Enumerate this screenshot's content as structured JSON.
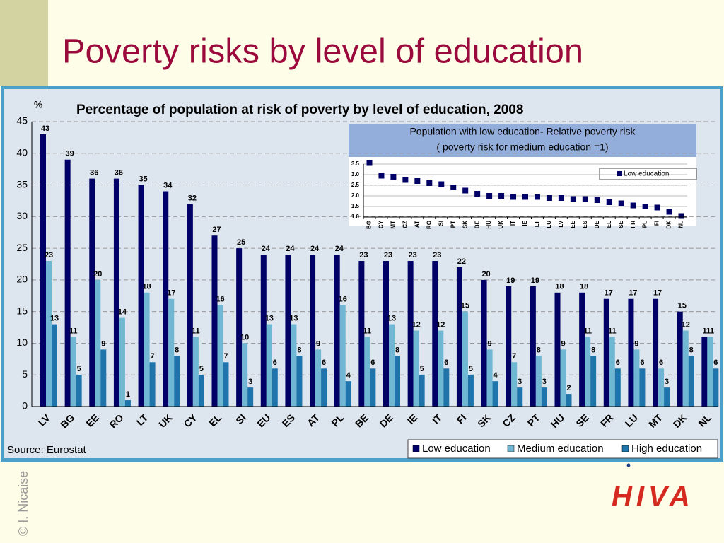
{
  "slide": {
    "title": "Poverty risks by level of education",
    "credit": "© I. Nicaise",
    "logo": "HIVA"
  },
  "chart_data": [
    {
      "type": "bar",
      "title": "Percentage of population at risk of poverty by level of education, 2008",
      "y_label": "%",
      "source": "Source: Eurostat",
      "categories": [
        "LV",
        "BG",
        "EE",
        "RO",
        "LT",
        "UK",
        "CY",
        "EL",
        "SI",
        "EU",
        "ES",
        "AT",
        "PL",
        "BE",
        "DE",
        "IE",
        "IT",
        "FI",
        "SK",
        "CZ",
        "PT",
        "HU",
        "SE",
        "FR",
        "LU",
        "MT",
        "DK",
        "NL"
      ],
      "series": [
        {
          "name": "Low education",
          "color": "#000066",
          "values": [
            43,
            39,
            36,
            36,
            35,
            34,
            32,
            27,
            25,
            24,
            24,
            24,
            24,
            23,
            23,
            23,
            23,
            22,
            20,
            19,
            19,
            18,
            18,
            17,
            17,
            17,
            15,
            11
          ]
        },
        {
          "name": "Medium education",
          "color": "#6fb7d2",
          "values": [
            23,
            11,
            20,
            14,
            18,
            17,
            11,
            16,
            10,
            13,
            13,
            9,
            16,
            11,
            13,
            12,
            12,
            15,
            9,
            7,
            8,
            9,
            11,
            11,
            9,
            6,
            12,
            11
          ]
        },
        {
          "name": "High education",
          "color": "#1f74ab",
          "values": [
            13,
            5,
            9,
            1,
            7,
            8,
            5,
            7,
            3,
            6,
            8,
            6,
            4,
            6,
            8,
            5,
            6,
            5,
            4,
            3,
            3,
            2,
            8,
            6,
            6,
            3,
            8,
            6
          ]
        }
      ],
      "ylim": [
        0,
        45
      ],
      "yticks": [
        0,
        5,
        10,
        15,
        20,
        25,
        30,
        35,
        40,
        45
      ],
      "grid": true,
      "legend": "bottom-right"
    },
    {
      "type": "scatter",
      "title_lines": [
        "Population with low education- Relative poverty risk",
        "( poverty risk for medium education =1)"
      ],
      "categories": [
        "BG",
        "CY",
        "MT",
        "CZ",
        "AT",
        "RO",
        "SI",
        "PT",
        "SK",
        "BE",
        "HU",
        "UK",
        "IT",
        "IE",
        "LT",
        "LU",
        "LV",
        "EE",
        "ES",
        "DE",
        "EL",
        "SE",
        "FR",
        "PL",
        "FI",
        "DK",
        "NL"
      ],
      "series": [
        {
          "name": "Low education",
          "color": "#000066",
          "values": [
            3.55,
            2.95,
            2.9,
            2.75,
            2.7,
            2.6,
            2.55,
            2.4,
            2.25,
            2.1,
            2.0,
            2.0,
            1.95,
            1.95,
            1.95,
            1.9,
            1.9,
            1.85,
            1.85,
            1.8,
            1.7,
            1.65,
            1.55,
            1.5,
            1.45,
            1.25,
            1.05
          ]
        }
      ],
      "ylim": [
        1,
        3.5
      ],
      "yticks": [
        {
          "value": 1,
          "label": "1.0"
        },
        1.5,
        {
          "value": 2,
          "label": "2.0"
        },
        2.5,
        {
          "value": 3,
          "label": "3.0"
        },
        3.5
      ],
      "grid": true,
      "legend": "top-right"
    }
  ]
}
